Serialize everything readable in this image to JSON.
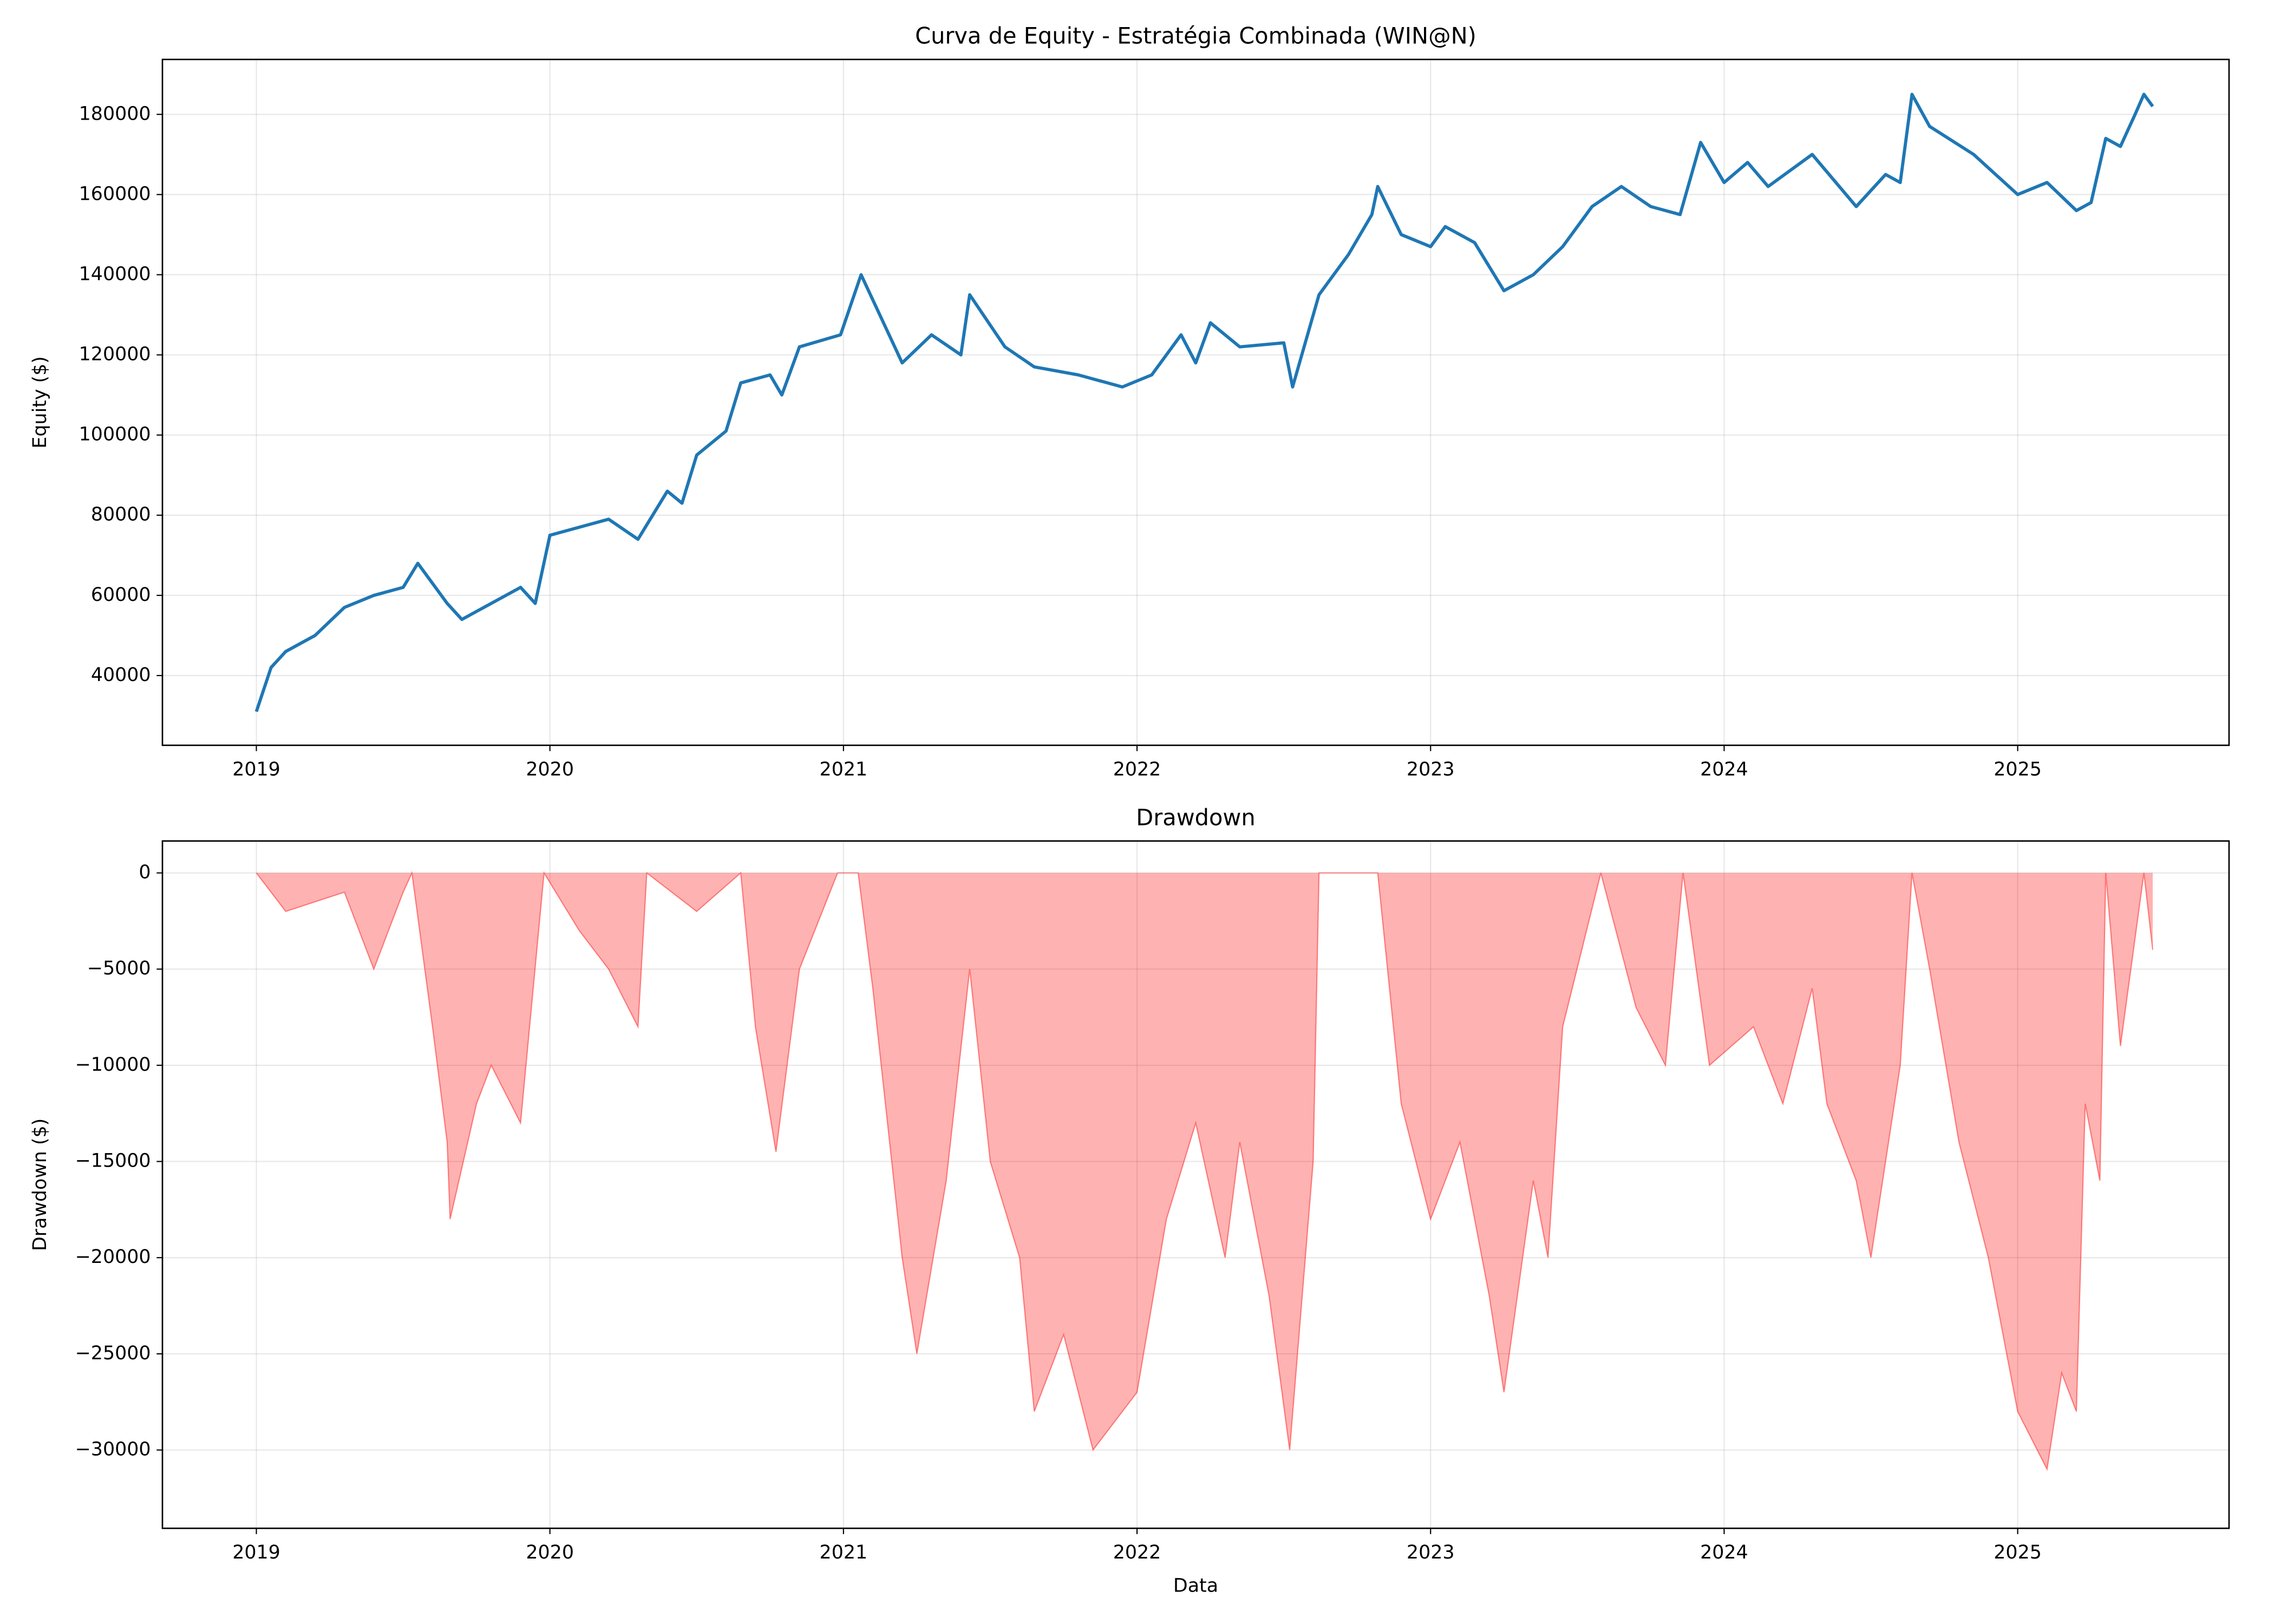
{
  "chart_data": [
    {
      "type": "line",
      "title": "Curva de Equity - Estratégia Combinada (WIN@N)",
      "y_label": "Equity ($)",
      "x": [
        2019.0,
        2019.05,
        2019.1,
        2019.2,
        2019.3,
        2019.4,
        2019.5,
        2019.55,
        2019.65,
        2019.7,
        2019.8,
        2019.9,
        2019.95,
        2020.0,
        2020.1,
        2020.2,
        2020.3,
        2020.4,
        2020.45,
        2020.5,
        2020.6,
        2020.65,
        2020.75,
        2020.79,
        2020.85,
        2020.99,
        2021.06,
        2021.2,
        2021.3,
        2021.4,
        2021.43,
        2021.55,
        2021.65,
        2021.8,
        2021.95,
        2022.05,
        2022.15,
        2022.2,
        2022.25,
        2022.35,
        2022.5,
        2022.53,
        2022.62,
        2022.72,
        2022.8,
        2022.82,
        2022.9,
        2023.0,
        2023.05,
        2023.15,
        2023.25,
        2023.35,
        2023.45,
        2023.55,
        2023.65,
        2023.75,
        2023.85,
        2023.92,
        2024.0,
        2024.08,
        2024.15,
        2024.3,
        2024.45,
        2024.55,
        2024.6,
        2024.64,
        2024.7,
        2024.85,
        2025.0,
        2025.1,
        2025.2,
        2025.25,
        2025.3,
        2025.35,
        2025.4,
        2025.43,
        2025.46
      ],
      "series": [
        {
          "name": "Equity",
          "color": "#1f77b4",
          "values": [
            31000,
            42000,
            46000,
            50000,
            57000,
            60000,
            62000,
            68000,
            58000,
            54000,
            58000,
            62000,
            58000,
            75000,
            77000,
            79000,
            74000,
            86000,
            83000,
            95000,
            101000,
            113000,
            115000,
            110000,
            122000,
            125000,
            140000,
            118000,
            125000,
            120000,
            135000,
            122000,
            117000,
            115000,
            112000,
            115000,
            125000,
            118000,
            128000,
            122000,
            123000,
            112000,
            135000,
            145000,
            155000,
            162000,
            150000,
            147000,
            152000,
            148000,
            136000,
            140000,
            147000,
            157000,
            162000,
            157000,
            155000,
            173000,
            163000,
            168000,
            162000,
            170000,
            157000,
            165000,
            163000,
            185000,
            177000,
            170000,
            160000,
            163000,
            156000,
            158000,
            174000,
            172000,
            180000,
            185000,
            182000
          ]
        }
      ],
      "xlim": [
        2018.68,
        2025.72
      ],
      "xticks": [
        2019,
        2020,
        2021,
        2022,
        2023,
        2024,
        2025
      ],
      "ylim": [
        22600,
        193700
      ],
      "yticks": [
        40000,
        60000,
        80000,
        100000,
        120000,
        140000,
        160000,
        180000
      ],
      "grid": true
    },
    {
      "type": "area",
      "title": "Drawdown",
      "y_label": "Drawdown ($)",
      "x_label": "Data",
      "x": [
        2019.0,
        2019.1,
        2019.3,
        2019.4,
        2019.5,
        2019.53,
        2019.6,
        2019.65,
        2019.66,
        2019.75,
        2019.8,
        2019.9,
        2019.98,
        2020.1,
        2020.2,
        2020.3,
        2020.33,
        2020.5,
        2020.65,
        2020.7,
        2020.77,
        2020.85,
        2020.98,
        2021.05,
        2021.1,
        2021.2,
        2021.25,
        2021.35,
        2021.43,
        2021.5,
        2021.6,
        2021.65,
        2021.75,
        2021.85,
        2022.0,
        2022.1,
        2022.2,
        2022.3,
        2022.35,
        2022.45,
        2022.52,
        2022.6,
        2022.62,
        2022.82,
        2022.9,
        2023.0,
        2023.1,
        2023.2,
        2023.25,
        2023.35,
        2023.4,
        2023.45,
        2023.58,
        2023.7,
        2023.8,
        2023.86,
        2023.95,
        2024.1,
        2024.2,
        2024.3,
        2024.35,
        2024.45,
        2024.5,
        2024.6,
        2024.64,
        2024.7,
        2024.8,
        2024.9,
        2025.0,
        2025.1,
        2025.15,
        2025.2,
        2025.23,
        2025.28,
        2025.3,
        2025.35,
        2025.43,
        2025.46
      ],
      "series": [
        {
          "name": "Drawdown",
          "color": "#ff0000",
          "alpha": 0.3,
          "values": [
            0,
            -2000,
            -1000,
            -5000,
            -1000,
            0,
            -8000,
            -14000,
            -18000,
            -12000,
            -10000,
            -13000,
            0,
            -3000,
            -5000,
            -8000,
            0,
            -2000,
            0,
            -8000,
            -14500,
            -5000,
            0,
            0,
            -6000,
            -20000,
            -25000,
            -16000,
            -5000,
            -15000,
            -20000,
            -28000,
            -24000,
            -30000,
            -27000,
            -18000,
            -13000,
            -20000,
            -14000,
            -22000,
            -30000,
            -15000,
            0,
            0,
            -12000,
            -18000,
            -14000,
            -22000,
            -27000,
            -16000,
            -20000,
            -8000,
            0,
            -7000,
            -10000,
            0,
            -10000,
            -8000,
            -12000,
            -6000,
            -12000,
            -16000,
            -20000,
            -10000,
            0,
            -5000,
            -14000,
            -20000,
            -28000,
            -31000,
            -26000,
            -28000,
            -12000,
            -16000,
            0,
            -9000,
            0,
            -4000
          ]
        }
      ],
      "xlim": [
        2018.68,
        2025.72
      ],
      "xticks": [
        2019,
        2020,
        2021,
        2022,
        2023,
        2024,
        2025
      ],
      "ylim": [
        -34070,
        1660
      ],
      "yticks": [
        {
          "value": -30000,
          "label": "−30000"
        },
        {
          "value": -25000,
          "label": "−25000"
        },
        {
          "value": -20000,
          "label": "−20000"
        },
        {
          "value": -15000,
          "label": "−15000"
        },
        {
          "value": -10000,
          "label": "−10000"
        },
        {
          "value": -5000,
          "label": "−5000"
        },
        0
      ],
      "grid": true
    }
  ]
}
